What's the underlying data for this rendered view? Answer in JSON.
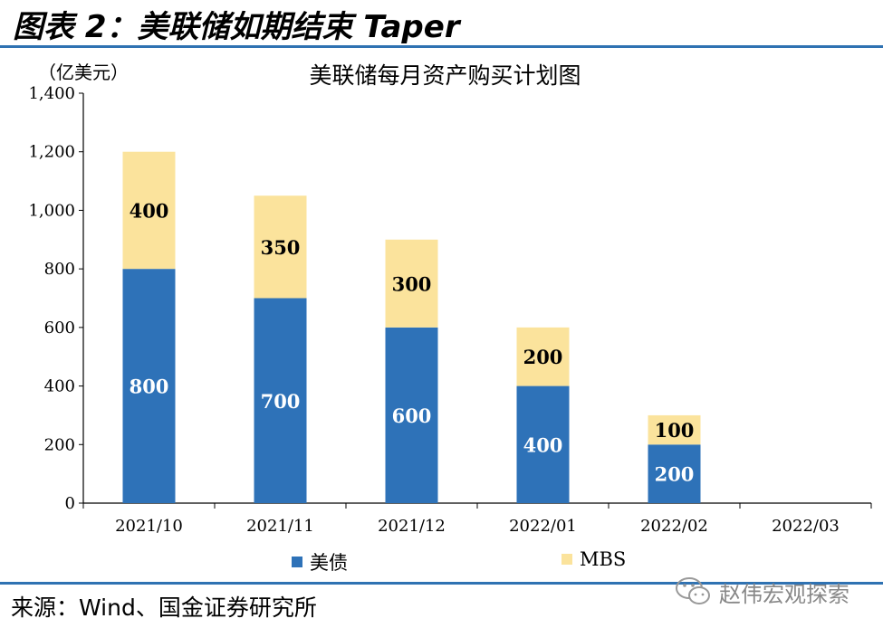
{
  "figure_title": "图表 2：美联储如期结束 Taper",
  "source": "来源：Wind、国金证券研究所",
  "watermark": "赵伟宏观探索",
  "colors": {
    "treasury": "#2e72b8",
    "mbs": "#fbe39c",
    "rule": "#2f72b2"
  },
  "chart_data": {
    "type": "bar",
    "stacked": true,
    "title": "美联储每月资产购买计划图",
    "unit_label": "（亿美元）",
    "categories": [
      "2021/10",
      "2021/11",
      "2021/12",
      "2022/01",
      "2022/02",
      "2022/03"
    ],
    "series": [
      {
        "name": "美债",
        "values": [
          800,
          700,
          600,
          400,
          200,
          0
        ],
        "color": "#2e72b8"
      },
      {
        "name": "MBS",
        "values": [
          400,
          350,
          300,
          200,
          100,
          0
        ],
        "color": "#fbe39c"
      }
    ],
    "data_labels": {
      "美债": [
        "800",
        "700",
        "600",
        "400",
        "200",
        ""
      ],
      "MBS": [
        "400",
        "350",
        "300",
        "200",
        "100",
        ""
      ]
    },
    "ylim": [
      0,
      1400
    ],
    "yticks": [
      0,
      200,
      400,
      600,
      800,
      1000,
      1200,
      1400
    ],
    "ytick_labels": [
      "0",
      "200",
      "400",
      "600",
      "800",
      "1,000",
      "1,200",
      "1,400"
    ],
    "grid": false,
    "legend_position": "bottom"
  }
}
